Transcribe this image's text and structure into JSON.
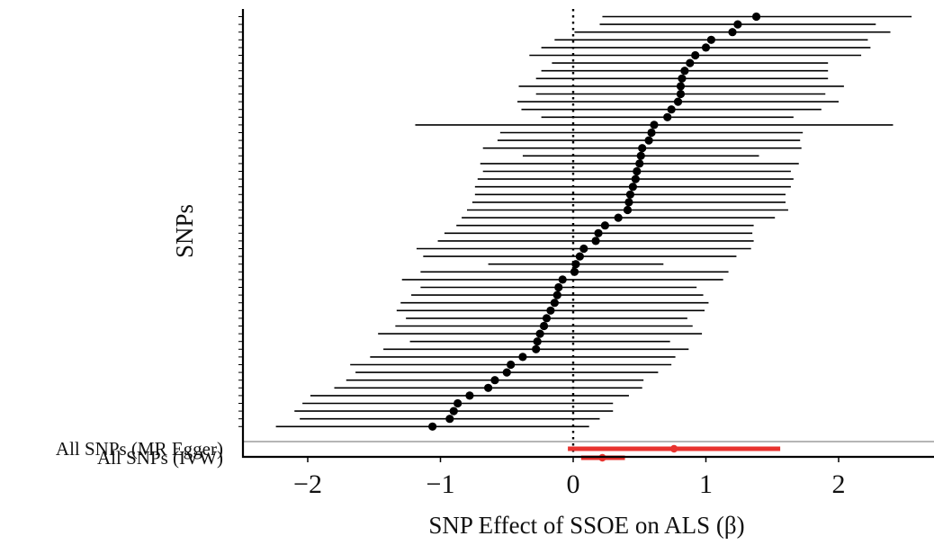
{
  "chart_data": {
    "type": "scatter",
    "title": "",
    "xlabel": "SNP Effect of SSOE on ALS (β)",
    "ylabel": "SNPs",
    "xlim": [
      -2.45,
      2.7
    ],
    "x_ticks": [
      -2,
      -1,
      0,
      1,
      2
    ],
    "x_tick_labels": [
      "−2",
      "−1",
      "0",
      "1",
      "2"
    ],
    "reference_line_x": 0,
    "grid": false,
    "point_color": "#000000",
    "summary_color": "#e8332f",
    "separator_color": "#b5b5b5",
    "snps": [
      {
        "est": 1.38,
        "lo": 0.22,
        "hi": 2.55
      },
      {
        "est": 1.24,
        "lo": 0.2,
        "hi": 2.28
      },
      {
        "est": 1.2,
        "lo": 0.01,
        "hi": 2.39
      },
      {
        "est": 1.04,
        "lo": -0.14,
        "hi": 2.22
      },
      {
        "est": 1.0,
        "lo": -0.24,
        "hi": 2.24
      },
      {
        "est": 0.92,
        "lo": -0.33,
        "hi": 2.17
      },
      {
        "est": 0.88,
        "lo": -0.16,
        "hi": 1.92
      },
      {
        "est": 0.84,
        "lo": -0.24,
        "hi": 1.92
      },
      {
        "est": 0.82,
        "lo": -0.28,
        "hi": 1.92
      },
      {
        "est": 0.81,
        "lo": -0.41,
        "hi": 2.04
      },
      {
        "est": 0.81,
        "lo": -0.28,
        "hi": 1.9
      },
      {
        "est": 0.79,
        "lo": -0.42,
        "hi": 2.0
      },
      {
        "est": 0.74,
        "lo": -0.39,
        "hi": 1.87
      },
      {
        "est": 0.71,
        "lo": -0.24,
        "hi": 1.66
      },
      {
        "est": 0.61,
        "lo": -1.19,
        "hi": 2.41
      },
      {
        "est": 0.59,
        "lo": -0.55,
        "hi": 1.73
      },
      {
        "est": 0.57,
        "lo": -0.57,
        "hi": 1.71
      },
      {
        "est": 0.52,
        "lo": -0.68,
        "hi": 1.72
      },
      {
        "est": 0.51,
        "lo": -0.38,
        "hi": 1.4
      },
      {
        "est": 0.5,
        "lo": -0.7,
        "hi": 1.7
      },
      {
        "est": 0.48,
        "lo": -0.68,
        "hi": 1.64
      },
      {
        "est": 0.47,
        "lo": -0.72,
        "hi": 1.66
      },
      {
        "est": 0.45,
        "lo": -0.74,
        "hi": 1.64
      },
      {
        "est": 0.43,
        "lo": -0.74,
        "hi": 1.6
      },
      {
        "est": 0.42,
        "lo": -0.76,
        "hi": 1.6
      },
      {
        "est": 0.41,
        "lo": -0.8,
        "hi": 1.62
      },
      {
        "est": 0.34,
        "lo": -0.84,
        "hi": 1.52
      },
      {
        "est": 0.24,
        "lo": -0.88,
        "hi": 1.36
      },
      {
        "est": 0.19,
        "lo": -0.97,
        "hi": 1.35
      },
      {
        "est": 0.17,
        "lo": -1.02,
        "hi": 1.36
      },
      {
        "est": 0.08,
        "lo": -1.18,
        "hi": 1.34
      },
      {
        "est": 0.05,
        "lo": -1.13,
        "hi": 1.23
      },
      {
        "est": 0.02,
        "lo": -0.64,
        "hi": 0.68
      },
      {
        "est": 0.01,
        "lo": -1.15,
        "hi": 1.17
      },
      {
        "est": -0.08,
        "lo": -1.29,
        "hi": 1.13
      },
      {
        "est": -0.11,
        "lo": -1.15,
        "hi": 0.93
      },
      {
        "est": -0.12,
        "lo": -1.22,
        "hi": 0.98
      },
      {
        "est": -0.14,
        "lo": -1.3,
        "hi": 1.02
      },
      {
        "est": -0.17,
        "lo": -1.33,
        "hi": 0.99
      },
      {
        "est": -0.2,
        "lo": -1.26,
        "hi": 0.86
      },
      {
        "est": -0.22,
        "lo": -1.34,
        "hi": 0.9
      },
      {
        "est": -0.25,
        "lo": -1.47,
        "hi": 0.97
      },
      {
        "est": -0.27,
        "lo": -1.23,
        "hi": 0.73
      },
      {
        "est": -0.28,
        "lo": -1.43,
        "hi": 0.87
      },
      {
        "est": -0.38,
        "lo": -1.53,
        "hi": 0.77
      },
      {
        "est": -0.47,
        "lo": -1.68,
        "hi": 0.74
      },
      {
        "est": -0.5,
        "lo": -1.64,
        "hi": 0.64
      },
      {
        "est": -0.59,
        "lo": -1.71,
        "hi": 0.53
      },
      {
        "est": -0.64,
        "lo": -1.8,
        "hi": 0.52
      },
      {
        "est": -0.78,
        "lo": -1.98,
        "hi": 0.42
      },
      {
        "est": -0.87,
        "lo": -2.04,
        "hi": 0.3
      },
      {
        "est": -0.9,
        "lo": -2.1,
        "hi": 0.3
      },
      {
        "est": -0.93,
        "lo": -2.06,
        "hi": 0.2
      },
      {
        "est": -1.06,
        "lo": -2.24,
        "hi": 0.12
      }
    ],
    "summary": [
      {
        "label": "All SNPs (MR Egger)",
        "est": 0.76,
        "lo": -0.04,
        "hi": 1.56
      },
      {
        "label": "All SNPs (IVW)",
        "est": 0.22,
        "lo": 0.06,
        "hi": 0.39
      }
    ]
  }
}
